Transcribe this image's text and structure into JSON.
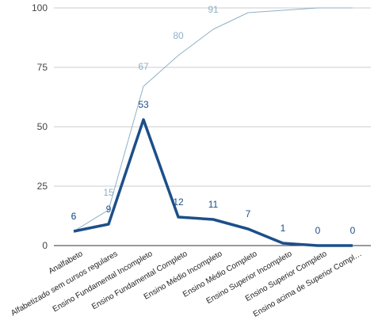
{
  "chart_data": {
    "type": "line",
    "categories": [
      "Analfabeto",
      "Alfabetizado sem cursos regulares",
      "Ensino Fundamental Incompleto",
      "Ensino Fundamental Completo",
      "Ensino Médio Incompleto",
      "Ensino Médio Completo",
      "Ensino Superior Incompleto",
      "Ensino Superior Completo",
      "Ensino acima de Superior Compl…"
    ],
    "series": [
      {
        "values": [
          6,
          9,
          53,
          12,
          11,
          7,
          1,
          0,
          0
        ],
        "color": "#1c4f8a"
      },
      {
        "values": [
          6,
          15,
          67,
          80,
          91,
          98,
          99,
          100,
          100
        ],
        "color": "#8fb1c6"
      }
    ],
    "ylim": [
      0,
      100
    ],
    "yticks": [
      0,
      25,
      50,
      75,
      100
    ],
    "grid": true,
    "title": "",
    "xlabel": "",
    "ylabel": ""
  }
}
